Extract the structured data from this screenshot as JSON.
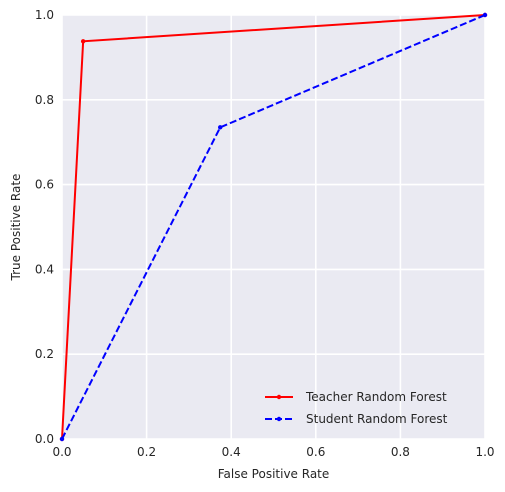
{
  "chart_data": {
    "type": "line",
    "title": "",
    "xlabel": "False Positive Rate",
    "ylabel": "True Positive Rate",
    "xlim": [
      0,
      1
    ],
    "ylim": [
      0,
      1
    ],
    "xticks": [
      "0.0",
      "0.2",
      "0.4",
      "0.6",
      "0.8",
      "1.0"
    ],
    "yticks": [
      "0.0",
      "0.2",
      "0.4",
      "0.6",
      "0.8",
      "1.0"
    ],
    "grid": true,
    "legend_position": "lower-right",
    "series": [
      {
        "name": "Teacher Random Forest",
        "color": "#ff0000",
        "linestyle": "solid",
        "x": [
          0.0,
          0.05,
          1.0
        ],
        "y": [
          0.0,
          0.938,
          1.0
        ]
      },
      {
        "name": "Student Random Forest",
        "color": "#0000ff",
        "linestyle": "dashed",
        "x": [
          0.0,
          0.374,
          1.0
        ],
        "y": [
          0.0,
          0.735,
          1.0
        ]
      }
    ]
  }
}
